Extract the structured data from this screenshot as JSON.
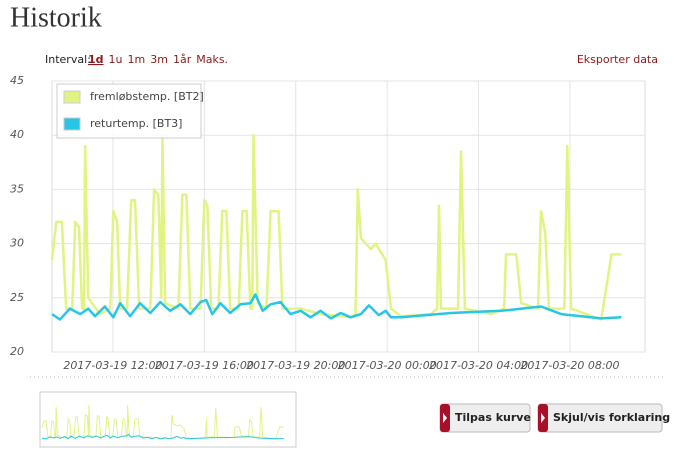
{
  "header": {
    "title": "Historik"
  },
  "interval": {
    "label": "Interval:",
    "options": [
      "1d",
      "1u",
      "1m",
      "3m",
      "1år",
      "Maks."
    ]
  },
  "export": "Eksporter data",
  "buttons": [
    "Tilpas kurve",
    "Skjul/vis forklaring"
  ],
  "chart_data": {
    "type": "line",
    "xlim": [
      "2017-03-19 09:20",
      "2017-03-20 11:17"
    ],
    "xticks": [
      "2017-03-19 12:00",
      "2017-03-19 16:00",
      "2017-03-19 20:00",
      "2017-03-20 00:00",
      "2017-03-20 04:00",
      "2017-03-20 08:00"
    ],
    "ylim": [
      20,
      45
    ],
    "yticks": [
      20,
      25,
      30,
      35,
      40,
      45
    ],
    "grid": true,
    "legend": "upper left",
    "series": [
      {
        "name": "fremløbstemp. [BT2]",
        "color": "#e2f383",
        "x": [
          "2017-03-19 09:20",
          "2017-03-19 09:31",
          "2017-03-19 09:46",
          "2017-03-19 09:57",
          "2017-03-19 10:13",
          "2017-03-19 10:21",
          "2017-03-19 10:31",
          "2017-03-19 10:39",
          "2017-03-19 10:44",
          "2017-03-19 10:47",
          "2017-03-19 10:55",
          "2017-03-19 11:26",
          "2017-03-19 11:53",
          "2017-03-19 12:01",
          "2017-03-19 12:11",
          "2017-03-19 12:19",
          "2017-03-19 12:37",
          "2017-03-19 12:48",
          "2017-03-19 12:58",
          "2017-03-19 13:09",
          "2017-03-19 13:38",
          "2017-03-19 13:48",
          "2017-03-19 13:59",
          "2017-03-19 14:07",
          "2017-03-19 14:10",
          "2017-03-19 14:17",
          "2017-03-19 14:52",
          "2017-03-19 15:02",
          "2017-03-19 15:13",
          "2017-03-19 15:23",
          "2017-03-19 15:50",
          "2017-03-19 16:00",
          "2017-03-19 16:08",
          "2017-03-19 16:18",
          "2017-03-19 16:37",
          "2017-03-19 16:47",
          "2017-03-19 16:58",
          "2017-03-19 17:08",
          "2017-03-19 17:30",
          "2017-03-19 17:40",
          "2017-03-19 17:51",
          "2017-03-19 18:01",
          "2017-03-19 18:06",
          "2017-03-19 18:09",
          "2017-03-19 18:20",
          "2017-03-19 18:43",
          "2017-03-19 18:54",
          "2017-03-19 19:15",
          "2017-03-19 19:25",
          "2017-03-19 20:13",
          "2017-03-19 21:05",
          "2017-03-19 22:24",
          "2017-03-19 22:37",
          "2017-03-19 22:43",
          "2017-03-19 22:51",
          "2017-03-19 23:17",
          "2017-03-19 23:30",
          "2017-03-19 23:56",
          "2017-03-20 00:10",
          "2017-03-20 00:36",
          "2017-03-20 01:55",
          "2017-03-20 02:11",
          "2017-03-20 02:16",
          "2017-03-20 02:21",
          "2017-03-20 03:06",
          "2017-03-20 03:14",
          "2017-03-20 03:24",
          "2017-03-20 04:33",
          "2017-03-20 05:07",
          "2017-03-20 05:12",
          "2017-03-20 05:39",
          "2017-03-20 05:52",
          "2017-03-20 06:36",
          "2017-03-20 06:44",
          "2017-03-20 06:55",
          "2017-03-20 07:05",
          "2017-03-20 07:45",
          "2017-03-20 07:53",
          "2017-03-20 08:03",
          "2017-03-20 09:22",
          "2017-03-20 09:49",
          "2017-03-20 10:15"
        ],
        "values": [
          28.5,
          32,
          32,
          24,
          24,
          32,
          31.5,
          24,
          24,
          39,
          25,
          23.5,
          24,
          33,
          32,
          24,
          24,
          34,
          34,
          24,
          24,
          35,
          34.5,
          25,
          40,
          24.5,
          24,
          34.5,
          34.5,
          24,
          24,
          34,
          33.5,
          24,
          24,
          33,
          33,
          24,
          24,
          33,
          33,
          24,
          24,
          40,
          24.5,
          24,
          33,
          33,
          24,
          24,
          23.5,
          23.2,
          23.5,
          35,
          30.5,
          29.5,
          30,
          28.5,
          24,
          23.3,
          23.5,
          24,
          33.5,
          24,
          24,
          38.5,
          24,
          23.5,
          24,
          29,
          29,
          24.5,
          24,
          33,
          31,
          24,
          24,
          39,
          24,
          23,
          29,
          29
        ]
      },
      {
        "name": "returtemp. [BT3]",
        "color": "#27c6e6",
        "x": [
          "2017-03-19 09:20",
          "2017-03-19 09:41",
          "2017-03-19 10:07",
          "2017-03-19 10:34",
          "2017-03-19 10:55",
          "2017-03-19 11:13",
          "2017-03-19 11:39",
          "2017-03-19 12:01",
          "2017-03-19 12:19",
          "2017-03-19 12:45",
          "2017-03-19 13:11",
          "2017-03-19 13:38",
          "2017-03-19 14:04",
          "2017-03-19 14:30",
          "2017-03-19 14:57",
          "2017-03-19 15:23",
          "2017-03-19 15:50",
          "2017-03-19 16:05",
          "2017-03-19 16:21",
          "2017-03-19 16:42",
          "2017-03-19 17:08",
          "2017-03-19 17:35",
          "2017-03-19 18:01",
          "2017-03-19 18:14",
          "2017-03-19 18:33",
          "2017-03-19 18:54",
          "2017-03-19 19:20",
          "2017-03-19 19:46",
          "2017-03-19 20:13",
          "2017-03-19 20:39",
          "2017-03-19 21:05",
          "2017-03-19 21:32",
          "2017-03-19 21:58",
          "2017-03-19 22:24",
          "2017-03-19 22:51",
          "2017-03-19 23:12",
          "2017-03-19 23:38",
          "2017-03-19 23:56",
          "2017-03-20 00:10",
          "2017-03-20 00:36",
          "2017-03-20 02:48",
          "2017-03-20 05:00",
          "2017-03-20 06:44",
          "2017-03-20 07:37",
          "2017-03-20 09:22",
          "2017-03-20 10:15"
        ],
        "values": [
          23.5,
          23,
          24,
          23.5,
          24,
          23.3,
          24.2,
          23.2,
          24.5,
          23.3,
          24.5,
          23.6,
          24.6,
          23.8,
          24.4,
          23.5,
          24.6,
          24.8,
          23.5,
          24.5,
          23.6,
          24.4,
          24.5,
          25.3,
          23.8,
          24.4,
          24.6,
          23.5,
          23.8,
          23.2,
          23.8,
          23.1,
          23.6,
          23.2,
          23.5,
          24.3,
          23.4,
          23.8,
          23.2,
          23.2,
          23.6,
          23.8,
          24.2,
          23.5,
          23.1,
          23.2
        ]
      }
    ]
  }
}
